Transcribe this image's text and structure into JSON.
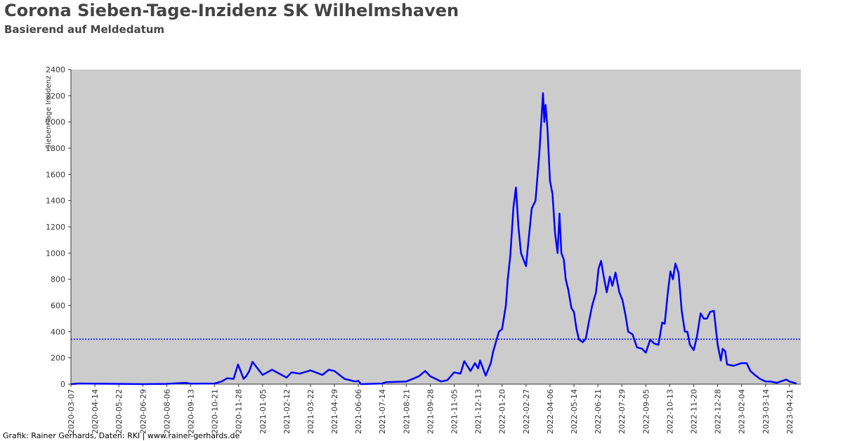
{
  "chart_data": {
    "type": "line",
    "title": "Corona Sieben-Tage-Inzidenz SK Wilhelmshaven",
    "subtitle": "Basierend auf Meldedatum",
    "y_label": "Sieben-Tage Inzidenz",
    "footer": "Grafik: Rainer Gerhards, Daten: RKI | www.rainer-gerhards.de",
    "color": "#0000ff",
    "hline": {
      "value": 343,
      "color": "#0000ff"
    },
    "xlim": [
      "2020-03-07",
      "2023-05-09"
    ],
    "ylim": [
      0,
      2400
    ],
    "yticks": [
      0,
      200,
      400,
      600,
      800,
      1000,
      1200,
      1400,
      1600,
      1800,
      2000,
      2200,
      2400
    ],
    "xticks": [
      "2020-03-07",
      "2020-04-14",
      "2020-05-22",
      "2020-06-29",
      "2020-08-06",
      "2020-09-13",
      "2020-10-21",
      "2020-11-28",
      "2021-01-05",
      "2021-02-12",
      "2021-03-22",
      "2021-04-29",
      "2021-06-06",
      "2021-07-14",
      "2021-08-21",
      "2021-09-28",
      "2021-11-05",
      "2021-12-13",
      "2022-01-20",
      "2022-02-27",
      "2022-04-06",
      "2022-05-14",
      "2022-06-21",
      "2022-07-29",
      "2022-09-05",
      "2022-10-13",
      "2022-11-20",
      "2022-12-28",
      "2023-02-04",
      "2023-03-14",
      "2023-04-21"
    ],
    "x": [
      "2020-03-07",
      "2020-03-20",
      "2020-04-14",
      "2020-05-22",
      "2020-06-29",
      "2020-08-06",
      "2020-09-05",
      "2020-09-13",
      "2020-10-21",
      "2020-11-01",
      "2020-11-10",
      "2020-11-20",
      "2020-11-27",
      "2020-12-06",
      "2020-12-10",
      "2020-12-15",
      "2020-12-20",
      "2021-01-05",
      "2021-01-20",
      "2021-02-12",
      "2021-02-20",
      "2021-03-05",
      "2021-03-22",
      "2021-04-10",
      "2021-04-20",
      "2021-04-29",
      "2021-05-15",
      "2021-06-01",
      "2021-06-06",
      "2021-06-10",
      "2021-07-14",
      "2021-07-20",
      "2021-08-21",
      "2021-09-10",
      "2021-09-20",
      "2021-09-28",
      "2021-10-15",
      "2021-10-25",
      "2021-11-05",
      "2021-11-15",
      "2021-11-21",
      "2021-12-01",
      "2021-12-08",
      "2021-12-13",
      "2021-12-16",
      "2021-12-25",
      "2022-01-02",
      "2022-01-06",
      "2022-01-15",
      "2022-01-20",
      "2022-01-26",
      "2022-01-29",
      "2022-02-02",
      "2022-02-07",
      "2022-02-11",
      "2022-02-15",
      "2022-02-19",
      "2022-02-23",
      "2022-02-27",
      "2022-03-03",
      "2022-03-08",
      "2022-03-14",
      "2022-03-20",
      "2022-03-26",
      "2022-03-28",
      "2022-03-30",
      "2022-04-02",
      "2022-04-06",
      "2022-04-10",
      "2022-04-14",
      "2022-04-18",
      "2022-04-21",
      "2022-04-24",
      "2022-04-28",
      "2022-05-01",
      "2022-05-05",
      "2022-05-10",
      "2022-05-14",
      "2022-05-18",
      "2022-05-22",
      "2022-05-28",
      "2022-06-02",
      "2022-06-07",
      "2022-06-12",
      "2022-06-18",
      "2022-06-22",
      "2022-06-26",
      "2022-07-01",
      "2022-07-05",
      "2022-07-10",
      "2022-07-14",
      "2022-07-19",
      "2022-07-25",
      "2022-07-30",
      "2022-08-04",
      "2022-08-08",
      "2022-08-15",
      "2022-08-22",
      "2022-08-30",
      "2022-09-05",
      "2022-09-12",
      "2022-09-18",
      "2022-09-25",
      "2022-10-01",
      "2022-10-05",
      "2022-10-10",
      "2022-10-14",
      "2022-10-18",
      "2022-10-22",
      "2022-10-27",
      "2022-11-01",
      "2022-11-06",
      "2022-11-10",
      "2022-11-14",
      "2022-11-20",
      "2022-11-25",
      "2022-12-01",
      "2022-12-06",
      "2022-12-11",
      "2022-12-16",
      "2022-12-22",
      "2022-12-28",
      "2023-01-02",
      "2023-01-05",
      "2023-01-09",
      "2023-01-12",
      "2023-01-22",
      "2023-02-04",
      "2023-02-12",
      "2023-02-18",
      "2023-02-25",
      "2023-03-05",
      "2023-03-14",
      "2023-03-22",
      "2023-04-01",
      "2023-04-10",
      "2023-04-16",
      "2023-04-21",
      "2023-05-02"
    ],
    "values": [
      0,
      5,
      3,
      2,
      0,
      2,
      10,
      3,
      5,
      20,
      45,
      40,
      150,
      40,
      60,
      100,
      170,
      70,
      110,
      50,
      90,
      80,
      105,
      70,
      110,
      100,
      40,
      20,
      25,
      0,
      5,
      15,
      20,
      60,
      100,
      60,
      20,
      30,
      90,
      80,
      175,
      100,
      160,
      120,
      180,
      65,
      160,
      250,
      400,
      420,
      600,
      800,
      980,
      1350,
      1500,
      1200,
      1000,
      950,
      900,
      1100,
      1340,
      1400,
      1750,
      2220,
      2000,
      2130,
      1950,
      1550,
      1450,
      1150,
      1000,
      1300,
      1000,
      950,
      800,
      720,
      580,
      550,
      420,
      340,
      320,
      350,
      480,
      600,
      700,
      880,
      940,
      800,
      700,
      820,
      750,
      850,
      700,
      640,
      520,
      400,
      380,
      280,
      270,
      240,
      340,
      310,
      300,
      470,
      460,
      700,
      860,
      800,
      920,
      850,
      560,
      400,
      400,
      300,
      260,
      360,
      540,
      500,
      500,
      550,
      560,
      300,
      180,
      270,
      250,
      150,
      140,
      160,
      160,
      100,
      70,
      40,
      20,
      20,
      10,
      25,
      35,
      20,
      5
    ]
  }
}
